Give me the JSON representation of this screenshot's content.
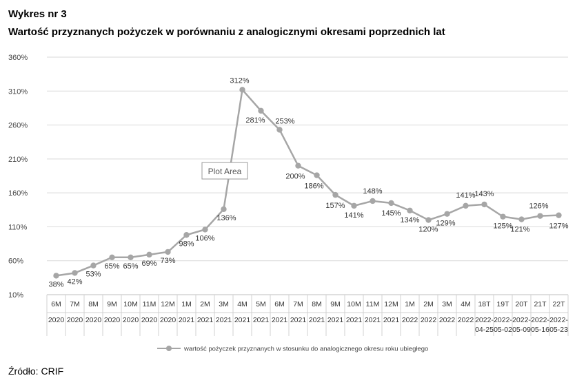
{
  "header": {
    "label": "Wykres nr 3",
    "title": "Wartość przyznanych pożyczek w porównaniu z analogicznymi okresami poprzednich lat"
  },
  "source": "Źródło: CRIF",
  "tooltip": "Plot Area",
  "chart_data": {
    "type": "line",
    "title": "Wartość przyznanych pożyczek w porównaniu z analogicznymi okresami poprzednich lat",
    "ylim": [
      10,
      360
    ],
    "yticks": [
      "10%",
      "60%",
      "110%",
      "160%",
      "210%",
      "260%",
      "310%",
      "360%"
    ],
    "grid": true,
    "legend_position": "bottom",
    "line_color": "#a6a6a6",
    "categories": [
      [
        "6M",
        "2020"
      ],
      [
        "7M",
        "2020"
      ],
      [
        "8M",
        "2020"
      ],
      [
        "9M",
        "2020"
      ],
      [
        "10M",
        "2020"
      ],
      [
        "11M",
        "2020"
      ],
      [
        "12M",
        "2020"
      ],
      [
        "1M",
        "2021"
      ],
      [
        "2M",
        "2021"
      ],
      [
        "3M",
        "2021"
      ],
      [
        "4M",
        "2021"
      ],
      [
        "5M",
        "2021"
      ],
      [
        "6M",
        "2021"
      ],
      [
        "7M",
        "2021"
      ],
      [
        "8M",
        "2021"
      ],
      [
        "9M",
        "2021"
      ],
      [
        "10M",
        "2021"
      ],
      [
        "11M",
        "2021"
      ],
      [
        "12M",
        "2021"
      ],
      [
        "1M",
        "2022"
      ],
      [
        "2M",
        "2022"
      ],
      [
        "3M",
        "2022"
      ],
      [
        "4M",
        "2022"
      ],
      [
        "18T",
        "2022-04-25"
      ],
      [
        "19T",
        "2022-05-02"
      ],
      [
        "20T",
        "2022-05-09"
      ],
      [
        "21T",
        "2022-05-16"
      ],
      [
        "22T",
        "2022-05-23"
      ]
    ],
    "series": [
      {
        "name": "wartość pożyczek przyznanych w stosunku do analogicznego okresu roku ubiegłego",
        "values": [
          38,
          42,
          53,
          65,
          65,
          69,
          73,
          98,
          106,
          136,
          312,
          281,
          253,
          200,
          186,
          157,
          141,
          148,
          145,
          134,
          120,
          129,
          141,
          143,
          125,
          121,
          126,
          127
        ],
        "labels": [
          "38%",
          "42%",
          "53%",
          "65%",
          "65%",
          "69%",
          "73%",
          "98%",
          "106%",
          "136%",
          "312%",
          "281%",
          "253%",
          "200%",
          "186%",
          "157%",
          "141%",
          "148%",
          "145%",
          "134%",
          "120%",
          "129%",
          "141%",
          "143%",
          "125%",
          "121%",
          "126%",
          "127%"
        ]
      }
    ]
  }
}
